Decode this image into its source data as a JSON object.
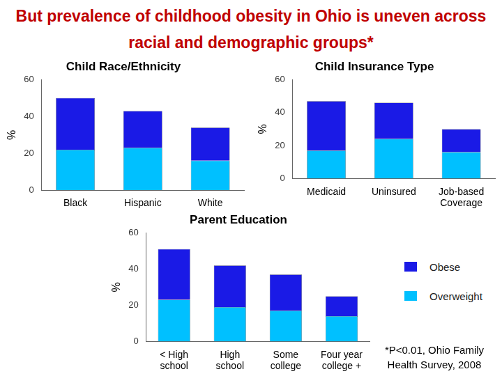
{
  "title": "But prevalence of childhood obesity in Ohio is uneven across racial and demographic groups*",
  "footnote": "*P<0.01, Ohio Family Health Survey, 2008",
  "chart_data": [
    {
      "type": "bar",
      "title": "Child Race/Ethnicity",
      "stacked": true,
      "y_label": "%",
      "categories": [
        "Black",
        "Hispanic",
        "White"
      ],
      "series": [
        {
          "name": "Overweight",
          "color": "#00c0ff",
          "values": [
            22,
            23,
            16
          ]
        },
        {
          "name": "Obese",
          "color": "#1a1ae6",
          "values": [
            28,
            20,
            18
          ]
        }
      ],
      "ylim": [
        0,
        60
      ],
      "yticks": [
        0,
        20,
        40,
        60
      ],
      "grid": false
    },
    {
      "type": "bar",
      "title": "Child Insurance Type",
      "stacked": true,
      "y_label": "%",
      "categories": [
        "Medicaid",
        "Uninsured",
        "Job-based Coverage"
      ],
      "series": [
        {
          "name": "Overweight",
          "color": "#00c0ff",
          "values": [
            17,
            24,
            16
          ]
        },
        {
          "name": "Obese",
          "color": "#1a1ae6",
          "values": [
            30,
            22,
            14
          ]
        }
      ],
      "ylim": [
        0,
        60
      ],
      "yticks": [
        0,
        20,
        40,
        60
      ],
      "grid": false
    },
    {
      "type": "bar",
      "title": "Parent Education",
      "stacked": true,
      "y_label": "%",
      "categories": [
        "< High school",
        "High school",
        "Some college",
        "Four year college +"
      ],
      "series": [
        {
          "name": "Overweight",
          "color": "#00c0ff",
          "values": [
            23,
            19,
            17,
            14
          ]
        },
        {
          "name": "Obese",
          "color": "#1a1ae6",
          "values": [
            28,
            23,
            20,
            11
          ]
        }
      ],
      "ylim": [
        0,
        60
      ],
      "yticks": [
        0,
        20,
        40,
        60
      ],
      "grid": false,
      "legend": "right"
    }
  ]
}
